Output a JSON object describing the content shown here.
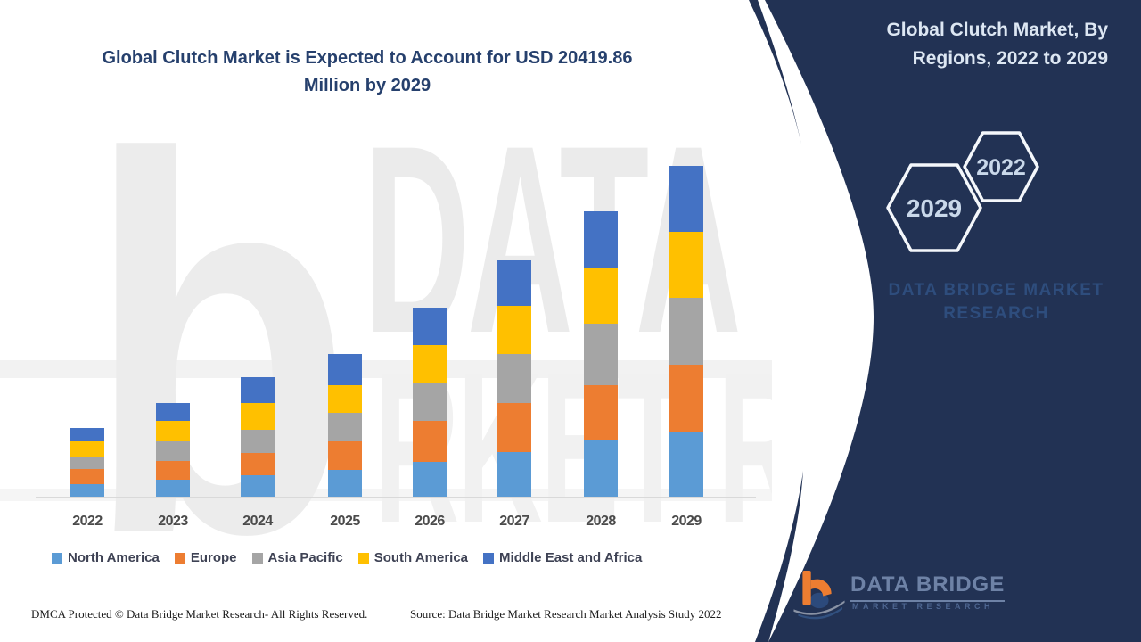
{
  "header": {
    "title_line1": "Global Clutch Market is Expected to Account for USD 20419.86",
    "title_line2": "Million by 2029"
  },
  "panel": {
    "title_line1": "Global Clutch Market, By",
    "title_line2": "Regions, 2022 to 2029",
    "hexagon_large_label": "2029",
    "hexagon_small_label": "2022",
    "watermark_line1": "DATA BRIDGE MARKET",
    "watermark_line2": "RESEARCH",
    "logo_name": "DATA BRIDGE",
    "logo_subtitle": "MARKET RESEARCH",
    "background_color": "#223254",
    "hexagon_stroke_color": "#f4f7fb"
  },
  "left_watermark": {
    "letter": "b",
    "row1": "DATA BR",
    "row2": "RKET RES"
  },
  "chart_data": {
    "type": "bar",
    "stacked": true,
    "title": "Global Clutch Market, By Regions, 2022 to 2029",
    "unit": "USD Million",
    "stated_total_2029": 20419.86,
    "categories": [
      "2022",
      "2023",
      "2024",
      "2025",
      "2026",
      "2027",
      "2028",
      "2029"
    ],
    "series": [
      {
        "name": "North America",
        "color": "#5B9BD5",
        "values": [
          770,
          1046,
          1321,
          1651,
          2147,
          2752,
          3523,
          4018
        ]
      },
      {
        "name": "Europe",
        "color": "#ED7D31",
        "values": [
          936,
          1156,
          1376,
          1761,
          2532,
          3027,
          3358,
          4129
        ]
      },
      {
        "name": "Asia Pacific",
        "color": "#A5A5A5",
        "values": [
          716,
          1211,
          1431,
          1761,
          2312,
          3027,
          3798,
          4129
        ]
      },
      {
        "name": "South America",
        "color": "#FFC000",
        "values": [
          991,
          1266,
          1651,
          1706,
          2367,
          2972,
          3468,
          4074
        ]
      },
      {
        "name": "Middle East and Africa",
        "color": "#4472C4",
        "values": [
          826,
          1101,
          1596,
          1926,
          2312,
          2807,
          3468,
          4069.86
        ]
      }
    ],
    "y_axis_labels_visible": false,
    "grid": false,
    "legend_position": "bottom"
  },
  "footer": {
    "dmca": "DMCA Protected © Data Bridge Market Research- All Rights Reserved.",
    "source": "Source: Data Bridge Market Research Market Analysis Study 2022"
  }
}
